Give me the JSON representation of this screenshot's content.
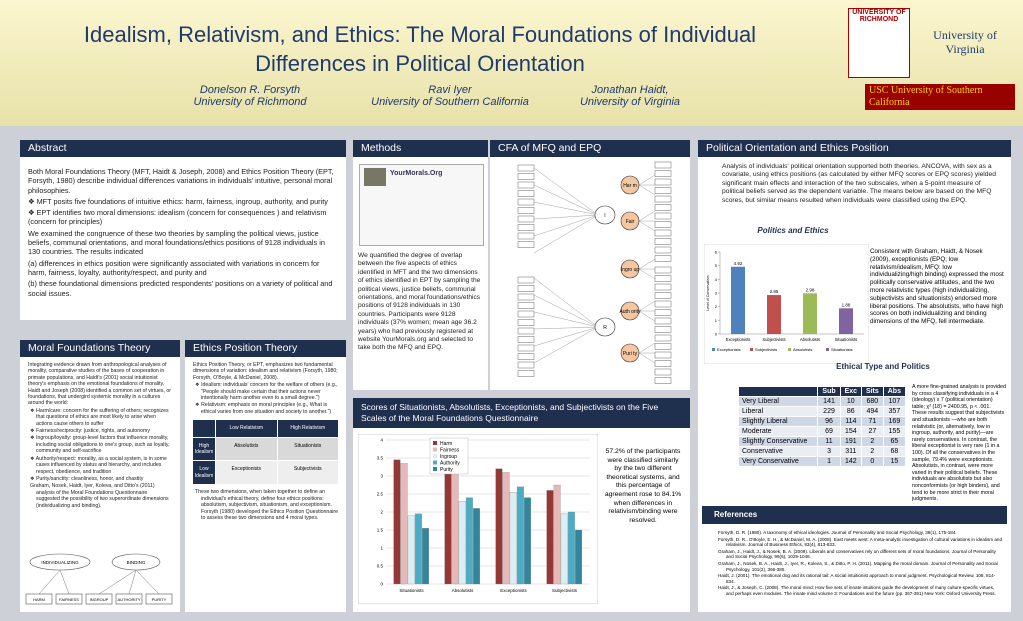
{
  "header": {
    "title": "Idealism, Relativism, and Ethics: The Moral Foundations of Individual Differences in Political Orientation",
    "authors": [
      {
        "name": "Donelson R. Forsyth",
        "affiliation": "University of Richmond"
      },
      {
        "name": "Ravi Iyer",
        "affiliation": "University of Southern California"
      },
      {
        "name": "Jonathan Haidt,",
        "affiliation": "University of Virginia"
      }
    ],
    "logos": [
      "UNIVERSITY OF RICHMOND",
      "University of Virginia",
      "USC University of Southern California"
    ]
  },
  "abstract": {
    "heading": "Abstract",
    "paragraphs": [
      "Both Moral Foundations Theory (MFT, Haidt & Joseph, 2008) and Ethics Position Theory (EPT, Forsyth, 1980) describe individual differences variations in individuals' intuitive, personal moral philosophies.",
      "❖ MFT posits five foundations of intuitive ethics: harm, fairness, ingroup, authority, and purity",
      "❖ EPT identifies two moral dimensions: idealism (concern for consequences ) and relativism (concern for principles)",
      "We examined the congruence of these two theories by sampling the political views, justice beliefs, communal orientations, and moral foundations/ethics positions of 9128 individuals in 130 countries. The results indicated",
      "(a) differences in ethics position were significantly associated with variations in concern for harm, fairness, loyalty, authority/respect, and purity and",
      "(b) these foundational dimensions predicted respondents' positions on a variety of political and social issues."
    ]
  },
  "mft": {
    "heading": "Moral Foundations Theory",
    "paragraphs": [
      "Integrating evidence drawn from anthropological analyses of morality, comparative studies of the bases of cooperation in primate populations, and Haidt's (2001) social intuitionist theory's emphasis on the emotional foundations of morality, Haidt and Joseph (2008) identified a common set of virtues, or foundations, that undergird systemic morality in a cultures around the world:",
      "❖ Harm/care: concern for the suffering of others; recognizes that questions of ethics are most likely to arise when actions cause others to suffer",
      "❖ Fairness/reciprocity: justice, rights, and autonomy",
      "❖ Ingroup/loyalty: group-level factors that influence morality, including social obligations to one's group, such as loyalty, community and self-sacrifice",
      "❖ Authority/respect: morality, as a social system, is in some cases influenced by status and hierarchy, and includes respect, obedience, and tradition",
      "❖ Purity/sanctity: cleanliness, honor, and chastity",
      "Graham, Nosek, Haidt, Iyer, Koleva, and Ditto's (2011) analysis of the Moral Foundations Questionnaire suggested the possibility of two superordinate dimensions (individualizing and binding)."
    ],
    "diagram": [
      "INDIVIDUALIZING",
      "BINDING",
      "HARM",
      "FAIRNESS",
      "INGROUP",
      "AUTHORITY",
      "PURITY"
    ]
  },
  "ept": {
    "heading": "Ethics Position Theory",
    "paragraphs": [
      "Ethics Position Theory, or EPT, emphasizes two fundamental dimensions of variation: idealism and relativism (Forsyth, 1980; Forsyth, O'Boyle, & McDaniel, 2008).",
      "❖ Idealism: individuals' concern for the welfare of others (e.g., \"People should make certain that their actions never intentionally harm another even to a small degree.\")",
      "❖ Relativism: emphasis on moral principles (e.g., What is ethical varies from one situation and society to another.\")",
      "These two dimensions, when taken together to define an individual's ethical theory, define four ethics positions: absolutism, subjectivism, situationism, and exceptionism. Forsyth (1980) developed the Ethics Position Questionnaire to assess these two dimensions and 4 moral types."
    ],
    "grid": {
      "headers": [
        "Low Relativism",
        "High Relativism"
      ],
      "rows": [
        "High Idealism",
        "Low Idealism"
      ],
      "cells": [
        "Absolutists",
        "Situationists",
        "Exceptionists",
        "Subjectivists"
      ]
    }
  },
  "methods": {
    "heading": "Methods",
    "site": "YourMorals.Org",
    "text": "We quantified the degree of overlap between the five aspects of ethics identified in MFT and the two dimensions of ethics identified in EPT by sampling the political views, justice beliefs, communal orientations, and moral foundations/ethics positions of 9128 individuals in 130 countries. Participants were 9128 individuals (37% women; mean age 36.2 years) who had previously registered at website YourMorals.org and selected to take both the MFQ and EPQ."
  },
  "cfa": {
    "heading": "CFA of  MFQ and EPQ",
    "nodes": [
      "I",
      "R",
      "Har m",
      "Fair",
      "Ingro up",
      "Auth ority",
      "Puri ty"
    ]
  },
  "scores": {
    "heading": "Scores of Situationists, Absolutists, Exceptionists, and Subjectivists on the Five Scales of the Moral Foundations Questionnaire",
    "chart": {
      "type": "bar",
      "categories": [
        "Situationists",
        "Absolutists",
        "Exceptionists",
        "Subjectivists"
      ],
      "series": [
        {
          "name": "Harm",
          "color": "#953735",
          "values": [
            3.45,
            3.4,
            3.2,
            2.6
          ]
        },
        {
          "name": "Fairness",
          "color": "#e6b9b8",
          "values": [
            3.35,
            3.3,
            3.1,
            2.75
          ]
        },
        {
          "name": "Ingroup",
          "color": "#dbeef3",
          "values": [
            1.9,
            2.3,
            2.55,
            1.95
          ]
        },
        {
          "name": "Authority",
          "color": "#4bacc6",
          "values": [
            1.95,
            2.4,
            2.7,
            2.0
          ]
        },
        {
          "name": "Purity",
          "color": "#31859c",
          "values": [
            1.55,
            2.1,
            2.4,
            1.5
          ]
        }
      ],
      "ylim": [
        0,
        4
      ],
      "yticks": [
        0,
        0.5,
        1,
        1.5,
        2,
        2.5,
        3,
        3.5,
        4
      ],
      "grid": true
    },
    "note": "57.2% of the participants were classified similarly by the two different theoretical systems, and this percentage of agreement rose to 84.1% when differences in relativism/binding were resolved."
  },
  "politics": {
    "heading": "Political Orientation and Ethics Position",
    "text": "Analysis of individuals' political orientation supported both theories. ANCOVA, with sex as a covariate, using ethics positions (as calculated by either MFQ scores or EPQ scores) yielded significant main effects and interaction of the two subscales, when a 5-point measure of political beliefs served as the dependent variable.  The means below are based on the MFQ scores, but similar means resulted when individuals were classified using the EPQ.",
    "subheading": "Politics and  Ethics",
    "chart": {
      "type": "bar",
      "categories": [
        "Exceptionists",
        "Subjectivists",
        "Absolutists",
        "Situationists"
      ],
      "values": [
        4.92,
        2.85,
        2.98,
        1.88
      ],
      "colors": [
        "#4f81bd",
        "#c0504d",
        "#9bbb59",
        "#8064a2"
      ],
      "ylim": [
        0,
        6
      ],
      "yticks": [
        0,
        1,
        2,
        3,
        4,
        5,
        6
      ],
      "ylabel": "Level of Conservatism"
    },
    "side": "Consistent with Graham, Haidt,  & Nosek (2009), exceptionists (EPQ; low relativism/idealism, MFQ: low individualizing/high binding) expressed the most politically conservative attitudes, and the two more relativistic types (high individualizing, subjectivists and situationists) endorsed more liberal positions. The absolutists, who have high scores on both individualizing and binding dimensions of the MFQ, fell intermediate.",
    "table_heading": "Ethical Type and Politics"
  },
  "table": {
    "headers": [
      "Sub",
      "Exc",
      "Sits",
      "Abs"
    ],
    "rows": [
      [
        "Very Liberal",
        "141",
        "10",
        "680",
        "107"
      ],
      [
        "Liberal",
        "229",
        "86",
        "494",
        "357"
      ],
      [
        "Slightly Liberal",
        "96",
        "114",
        "71",
        "169"
      ],
      [
        "Moderate",
        "69",
        "154",
        "27",
        "155"
      ],
      [
        "Slightly Conservative",
        "11",
        "191",
        "2",
        "65"
      ],
      [
        "Conservative",
        "3",
        "311",
        "2",
        "68"
      ],
      [
        "Very Conservative",
        "1",
        "142",
        "0",
        "15"
      ]
    ],
    "note": "A more fine-grained analysis is provided by cross classifying individuals in a 4 (ideology) x 7 (political orientation) table; χ² (18) = 2400.95, p < .001. These results suggest that subjectivists and situationists —who are both relativistic (or, alternatively, low in ingroup, authority, and purity)—are rarely conservatives.  In contrast, the liberal exceptionist is very rare (1 in a 100).  Of all the conservatives in the sample, 79.4% were exceptionists. Absolutists, in contrast, were more varied in their political beliefs. These individuals are absolutists but also nonconformists (or high binders), and tend to be more strict in their moral judgments."
  },
  "references": {
    "heading": "References",
    "items": [
      "Forsyth, D. R. (1980). A taxonomy of ethical ideologies. Journal of Personality and Social Psychology, 39(1), 175-184.",
      "Forsyth, D. R., O'Boyle, E. H., & McDaniel, M. A. (2008). East meets west: A meta-analytic investigation of cultural variations in idealism and relativism. Journal of Business Ethics, 83(4), 813-833.",
      "Graham, J., Haidt, J., & Nosek, B. A. (2009). Liberals and conservatives rely on different sets of moral foundations. Journal of Personality and Social Psychology, 96(5), 1029-1046.",
      "Graham, J., Nosek, B. A., Haidt, J., Iyer, R., Koleva, S., & Ditto, P. H. (2011). Mapping the moral domain. Journal of Personality and Social Psychology, 101(2), 366-385.",
      "Haidt, J. (2001). The emotional dog and its rational tail: A social intuitionist approach to moral judgment. Psychological Review, 108, 814-834.",
      "Haidt, J., & Joseph, C. (2008). The moral mind: How five sets of innate intuitions guide the development of many culture-specific virtues, and perhaps even modules. The innate mind volume 3: Foundations and the future (pp. 367-391) New York: Oxford University Press."
    ]
  }
}
